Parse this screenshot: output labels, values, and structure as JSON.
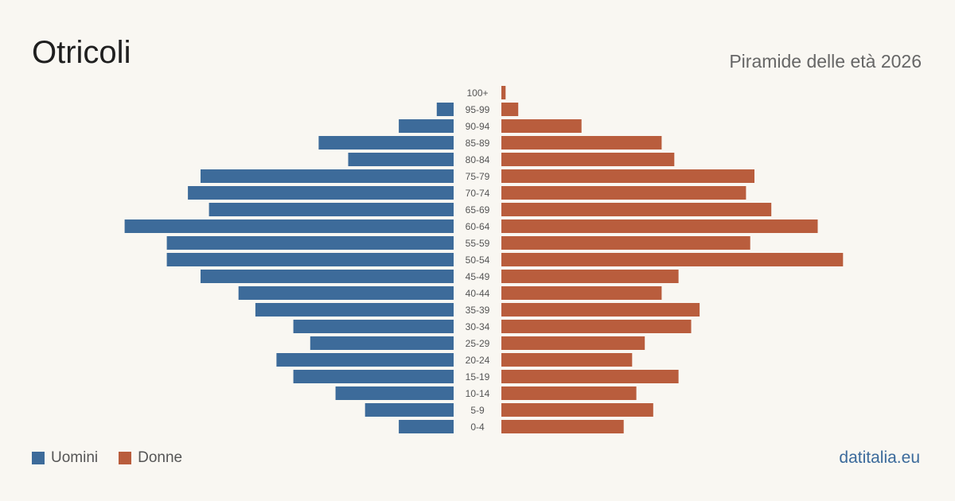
{
  "header": {
    "title": "Otricoli",
    "subtitle": "Piramide delle età 2026"
  },
  "legend": {
    "men_label": "Uomini",
    "women_label": "Donne"
  },
  "footer": {
    "source": "datitalia.eu"
  },
  "colors": {
    "men": "#3d6b9a",
    "women": "#b95d3d",
    "background": "#f9f7f2"
  },
  "chart_data": {
    "type": "bar",
    "orientation": "horizontal-pyramid",
    "categories": [
      "100+",
      "95-99",
      "90-94",
      "85-89",
      "80-84",
      "75-79",
      "70-74",
      "65-69",
      "60-64",
      "55-59",
      "50-54",
      "45-49",
      "40-44",
      "35-39",
      "30-34",
      "25-29",
      "20-24",
      "15-19",
      "10-14",
      "5-9",
      "0-4"
    ],
    "series": [
      {
        "name": "Uomini",
        "values": [
          0,
          4,
          13,
          32,
          25,
          60,
          63,
          58,
          78,
          68,
          68,
          60,
          51,
          47,
          38,
          34,
          42,
          38,
          28,
          21,
          13
        ]
      },
      {
        "name": "Donne",
        "values": [
          1,
          4,
          19,
          38,
          41,
          60,
          58,
          64,
          75,
          59,
          81,
          42,
          38,
          47,
          45,
          34,
          31,
          42,
          32,
          36,
          29
        ]
      }
    ],
    "legend_position": "bottom-left",
    "grid": false
  }
}
